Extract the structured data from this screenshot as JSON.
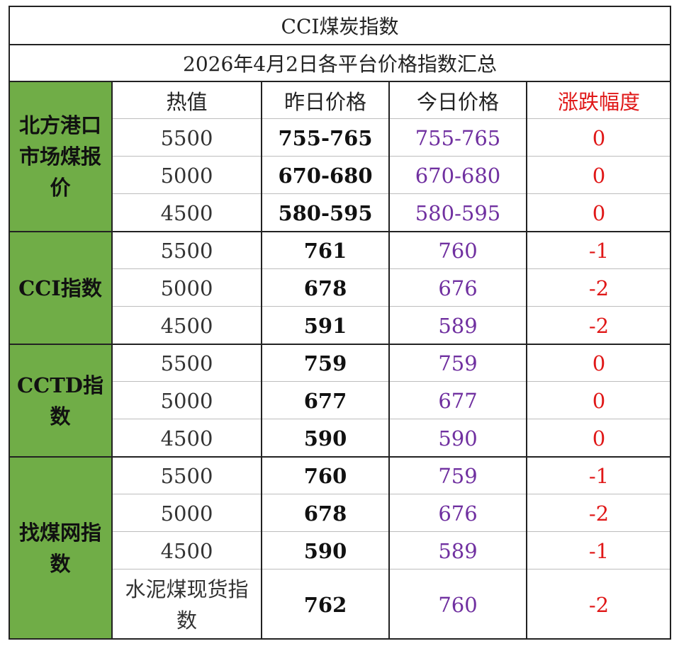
{
  "title": "CCI煤炭指数",
  "subtitle": "2026年4月2日各平台价格指数汇总",
  "headers": {
    "heat": "热值",
    "yesterday": "昨日价格",
    "today": "今日价格",
    "change": "涨跌幅度"
  },
  "groups": [
    {
      "name_lines": [
        "北方港口",
        "市场煤报",
        "价"
      ],
      "rows": [
        {
          "heat": "5500",
          "yesterday": "755-765",
          "today": "755-765",
          "change": "0"
        },
        {
          "heat": "5000",
          "yesterday": "670-680",
          "today": "670-680",
          "change": "0"
        },
        {
          "heat": "4500",
          "yesterday": "580-595",
          "today": "580-595",
          "change": "0"
        }
      ]
    },
    {
      "name_lines": [
        "CCI指数"
      ],
      "rows": [
        {
          "heat": "5500",
          "yesterday": "761",
          "today": "760",
          "change": "-1"
        },
        {
          "heat": "5000",
          "yesterday": "678",
          "today": "676",
          "change": "-2"
        },
        {
          "heat": "4500",
          "yesterday": "591",
          "today": "589",
          "change": "-2"
        }
      ]
    },
    {
      "name_lines": [
        "CCTD指数"
      ],
      "rows": [
        {
          "heat": "5500",
          "yesterday": "759",
          "today": "759",
          "change": "0"
        },
        {
          "heat": "5000",
          "yesterday": "677",
          "today": "677",
          "change": "0"
        },
        {
          "heat": "4500",
          "yesterday": "590",
          "today": "590",
          "change": "0"
        }
      ]
    },
    {
      "name_lines": [
        "找煤网指",
        "数"
      ],
      "rows": [
        {
          "heat": "5500",
          "yesterday": "760",
          "today": "759",
          "change": "-1"
        },
        {
          "heat": "5000",
          "yesterday": "678",
          "today": "676",
          "change": "-2"
        },
        {
          "heat": "4500",
          "yesterday": "590",
          "today": "589",
          "change": "-1"
        },
        {
          "heat_lines": [
            "水泥煤现货指",
            "数"
          ],
          "yesterday": "762",
          "today": "760",
          "change": "-2"
        }
      ]
    }
  ],
  "colors": {
    "group_fill": "#70ad47",
    "today_text": "#7030a0",
    "change_text": "#e01818"
  }
}
